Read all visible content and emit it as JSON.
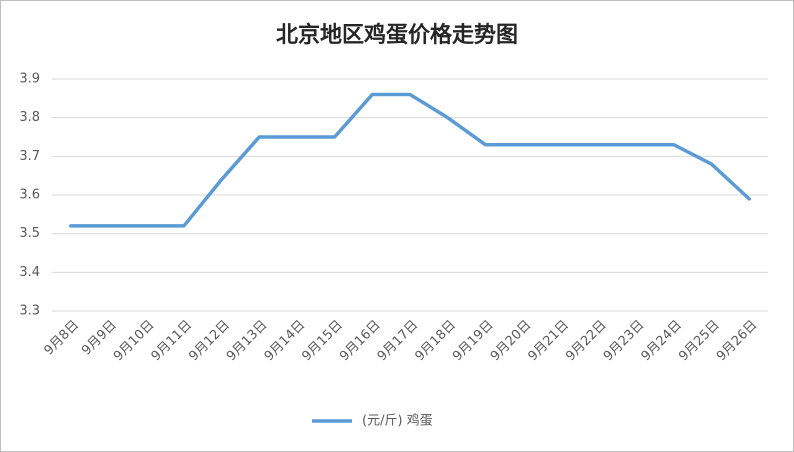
{
  "chart_data": {
    "type": "line",
    "title": "北京地区鸡蛋价格走势图",
    "categories": [
      "9月8日",
      "9月9日",
      "9月10日",
      "9月11日",
      "9月12日",
      "9月13日",
      "9月14日",
      "9月15日",
      "9月16日",
      "9月17日",
      "9月18日",
      "9月19日",
      "9月20日",
      "9月21日",
      "9月22日",
      "9月23日",
      "9月24日",
      "9月25日",
      "9月26日"
    ],
    "series": [
      {
        "name": "(元/斤) 鸡蛋",
        "color": "#5b9bd5",
        "values": [
          3.52,
          3.52,
          3.52,
          3.52,
          3.64,
          3.75,
          3.75,
          3.75,
          3.86,
          3.86,
          3.8,
          3.73,
          3.73,
          3.73,
          3.73,
          3.73,
          3.73,
          3.68,
          3.59
        ]
      }
    ],
    "ylim": [
      3.3,
      3.9
    ],
    "yticks": [
      3.3,
      3.4,
      3.5,
      3.6,
      3.7,
      3.8,
      3.9
    ],
    "grid": true,
    "legend": "bottom"
  }
}
